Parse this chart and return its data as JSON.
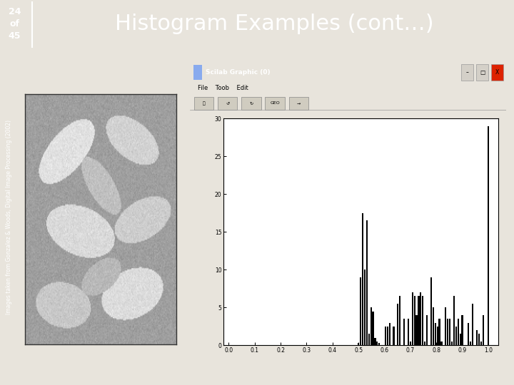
{
  "title": "Histogram Examples (cont…)",
  "title_color": "#ffffff",
  "header_bg": "#2e3191",
  "slide_number": "24\nof\n45",
  "sidebar_text": "Images taken from Gonzalez & Woods, Digital Image Processing (2002)",
  "bg_color": "#e8e4dc",
  "plot_bg": "#ffffff",
  "window_title": "Scilab Graphic (0)",
  "titlebar_color": "#1a6fd4",
  "menubar_color": "#ece9d8",
  "x_ticks": [
    0.0,
    0.1,
    0.2,
    0.3,
    0.4,
    0.5,
    0.6,
    0.7,
    0.8,
    0.9,
    1.0
  ],
  "y_ticks": [
    0,
    5,
    10,
    15,
    20,
    25,
    30
  ],
  "ylim": [
    0,
    30
  ],
  "hist_x": [
    0.5,
    0.508,
    0.516,
    0.524,
    0.532,
    0.54,
    0.548,
    0.556,
    0.564,
    0.572,
    0.58,
    0.588,
    0.596,
    0.604,
    0.612,
    0.62,
    0.628,
    0.636,
    0.644,
    0.652,
    0.66,
    0.668,
    0.676,
    0.684,
    0.692,
    0.7,
    0.708,
    0.716,
    0.724,
    0.732,
    0.74,
    0.748,
    0.756,
    0.764,
    0.772,
    0.78,
    0.788,
    0.796,
    0.804,
    0.812,
    0.82,
    0.828,
    0.836,
    0.844,
    0.852,
    0.86,
    0.868,
    0.876,
    0.884,
    0.892,
    0.9,
    0.908,
    0.916,
    0.924,
    0.932,
    0.94,
    0.948,
    0.956,
    0.964,
    0.972,
    0.98,
    0.988,
    1.0
  ],
  "hist_y": [
    0.3,
    9.0,
    17.5,
    10.0,
    16.5,
    1.5,
    5.0,
    4.5,
    1.0,
    0.5,
    0.3,
    0.0,
    0.0,
    2.5,
    2.5,
    3.0,
    0.0,
    2.5,
    0.0,
    5.5,
    6.5,
    0.0,
    3.5,
    0.0,
    3.5,
    0.5,
    7.0,
    6.5,
    4.0,
    6.5,
    7.0,
    6.5,
    0.5,
    4.0,
    0.0,
    9.0,
    5.0,
    3.0,
    2.5,
    3.5,
    0.5,
    0.0,
    5.0,
    3.5,
    3.5,
    0.5,
    6.5,
    2.5,
    3.5,
    1.5,
    4.0,
    0.0,
    0.0,
    3.0,
    0.5,
    5.5,
    0.0,
    2.0,
    1.5,
    0.5,
    4.0,
    0.0,
    29.0
  ]
}
